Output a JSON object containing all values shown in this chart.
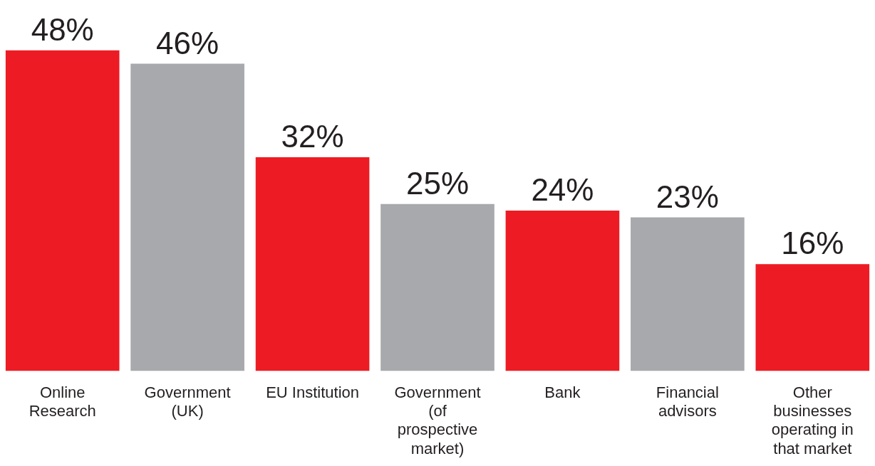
{
  "chart_data": {
    "type": "bar",
    "categories": [
      "Online Research",
      "Government (UK)",
      "EU Institution",
      "Government (of prospective market)",
      "Bank",
      "Financial advisors",
      "Other businesses operating in that market"
    ],
    "values": [
      48,
      46,
      32,
      25,
      24,
      23,
      16
    ],
    "colors": [
      "#ed1c24",
      "#a7a9ac",
      "#ed1c24",
      "#a7a9ac",
      "#ed1c24",
      "#a7a9ac",
      "#ed1c24"
    ],
    "value_labels": [
      "48%",
      "46%",
      "32%",
      "25%",
      "24%",
      "23%",
      "16%"
    ],
    "grid": false,
    "legend": false
  }
}
